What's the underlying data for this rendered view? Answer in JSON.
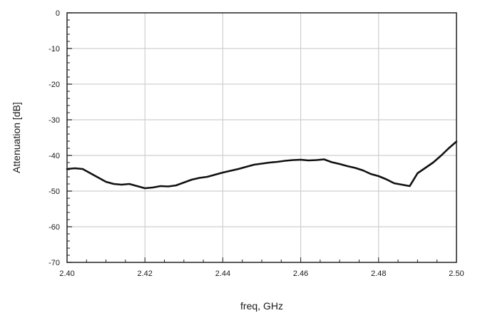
{
  "chart_data": {
    "type": "line",
    "title": "",
    "xlabel": "freq, GHz",
    "ylabel": "Attenuation [dB]",
    "xlim": [
      2.4,
      2.5
    ],
    "ylim": [
      -70,
      0
    ],
    "grid": true,
    "x_ticks": [
      "2.40",
      "2.42",
      "2.44",
      "2.46",
      "2.48",
      "2.50"
    ],
    "y_ticks": [
      "0",
      "-10",
      "-20",
      "-30",
      "-40",
      "-50",
      "-60",
      "-70"
    ],
    "series": [
      {
        "color": "#111111",
        "x": [
          2.4,
          2.402,
          2.404,
          2.406,
          2.408,
          2.41,
          2.412,
          2.414,
          2.416,
          2.418,
          2.42,
          2.422,
          2.424,
          2.426,
          2.428,
          2.43,
          2.432,
          2.434,
          2.436,
          2.438,
          2.44,
          2.442,
          2.444,
          2.446,
          2.448,
          2.45,
          2.452,
          2.454,
          2.456,
          2.458,
          2.46,
          2.462,
          2.464,
          2.466,
          2.468,
          2.47,
          2.472,
          2.474,
          2.476,
          2.478,
          2.48,
          2.482,
          2.484,
          2.486,
          2.488,
          2.49,
          2.492,
          2.494,
          2.496,
          2.498,
          2.5
        ],
        "y": [
          -43.8,
          -43.6,
          -43.8,
          -45.0,
          -46.2,
          -47.4,
          -48.0,
          -48.2,
          -48.0,
          -48.6,
          -49.2,
          -49.0,
          -48.6,
          -48.7,
          -48.4,
          -47.6,
          -46.8,
          -46.3,
          -46.0,
          -45.4,
          -44.8,
          -44.3,
          -43.8,
          -43.2,
          -42.6,
          -42.3,
          -42.0,
          -41.8,
          -41.5,
          -41.3,
          -41.2,
          -41.4,
          -41.3,
          -41.1,
          -41.9,
          -42.4,
          -43.0,
          -43.5,
          -44.2,
          -45.2,
          -45.8,
          -46.7,
          -47.8,
          -48.2,
          -48.6,
          -45.0,
          -43.5,
          -42.0,
          -40.1,
          -38.0,
          -36.1
        ]
      }
    ]
  }
}
